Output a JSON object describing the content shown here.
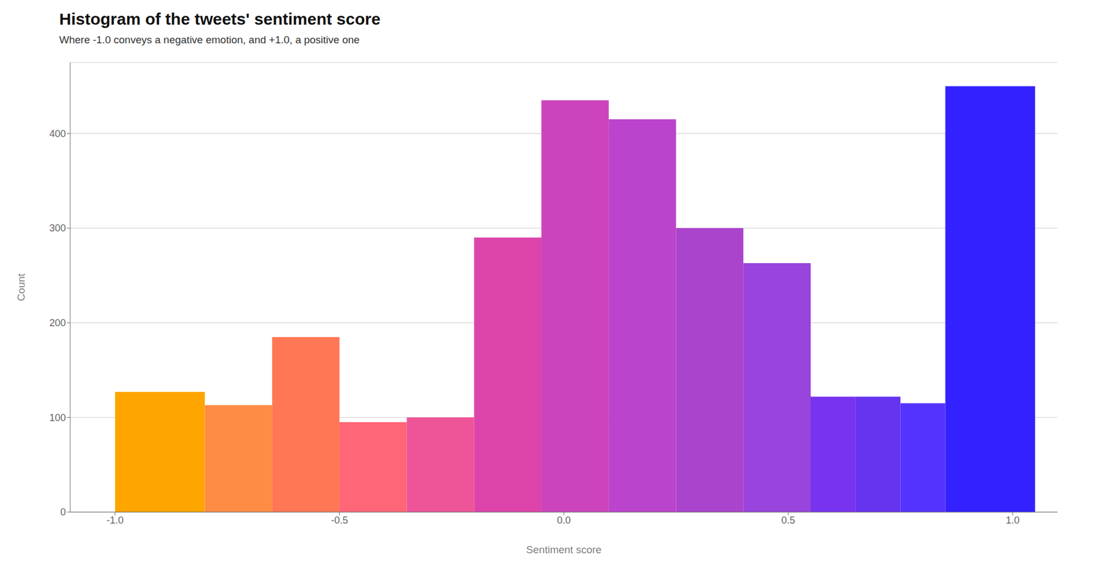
{
  "chart_data": {
    "type": "histogram",
    "title": "Histogram of the tweets' sentiment score",
    "subtitle": "Where -1.0 conveys a negative emotion, and +1.0, a positive one",
    "xlabel": "Sentiment score",
    "ylabel": "Count",
    "bins": [
      -1.0,
      -0.8,
      -0.65,
      -0.5,
      -0.35,
      -0.2,
      -0.05,
      0.1,
      0.25,
      0.4,
      0.55,
      0.65,
      0.75,
      0.85,
      1.05
    ],
    "values": [
      127,
      113,
      185,
      95,
      100,
      290,
      435,
      415,
      300,
      263,
      122,
      122,
      115,
      450
    ],
    "colors": [
      "#FFA500",
      "#FF8C44",
      "#FF7755",
      "#FF6677",
      "#EE5599",
      "#DD44AA",
      "#CC44BB",
      "#BB44CC",
      "#AA44CC",
      "#9944DD",
      "#7733EE",
      "#6633EE",
      "#5533FF",
      "#3322FF"
    ],
    "xlim": [
      -1.1,
      1.1
    ],
    "ylim": [
      0,
      475
    ],
    "xticks": [
      {
        "value": -1.0,
        "label": "-1.0"
      },
      {
        "value": -0.5,
        "label": "-0.5"
      },
      {
        "value": 0.0,
        "label": "0.0"
      },
      {
        "value": 0.5,
        "label": "0.5"
      },
      {
        "value": 1.0,
        "label": "1.0"
      }
    ],
    "yticks": [
      0,
      100,
      200,
      300,
      400
    ],
    "grid": true
  }
}
